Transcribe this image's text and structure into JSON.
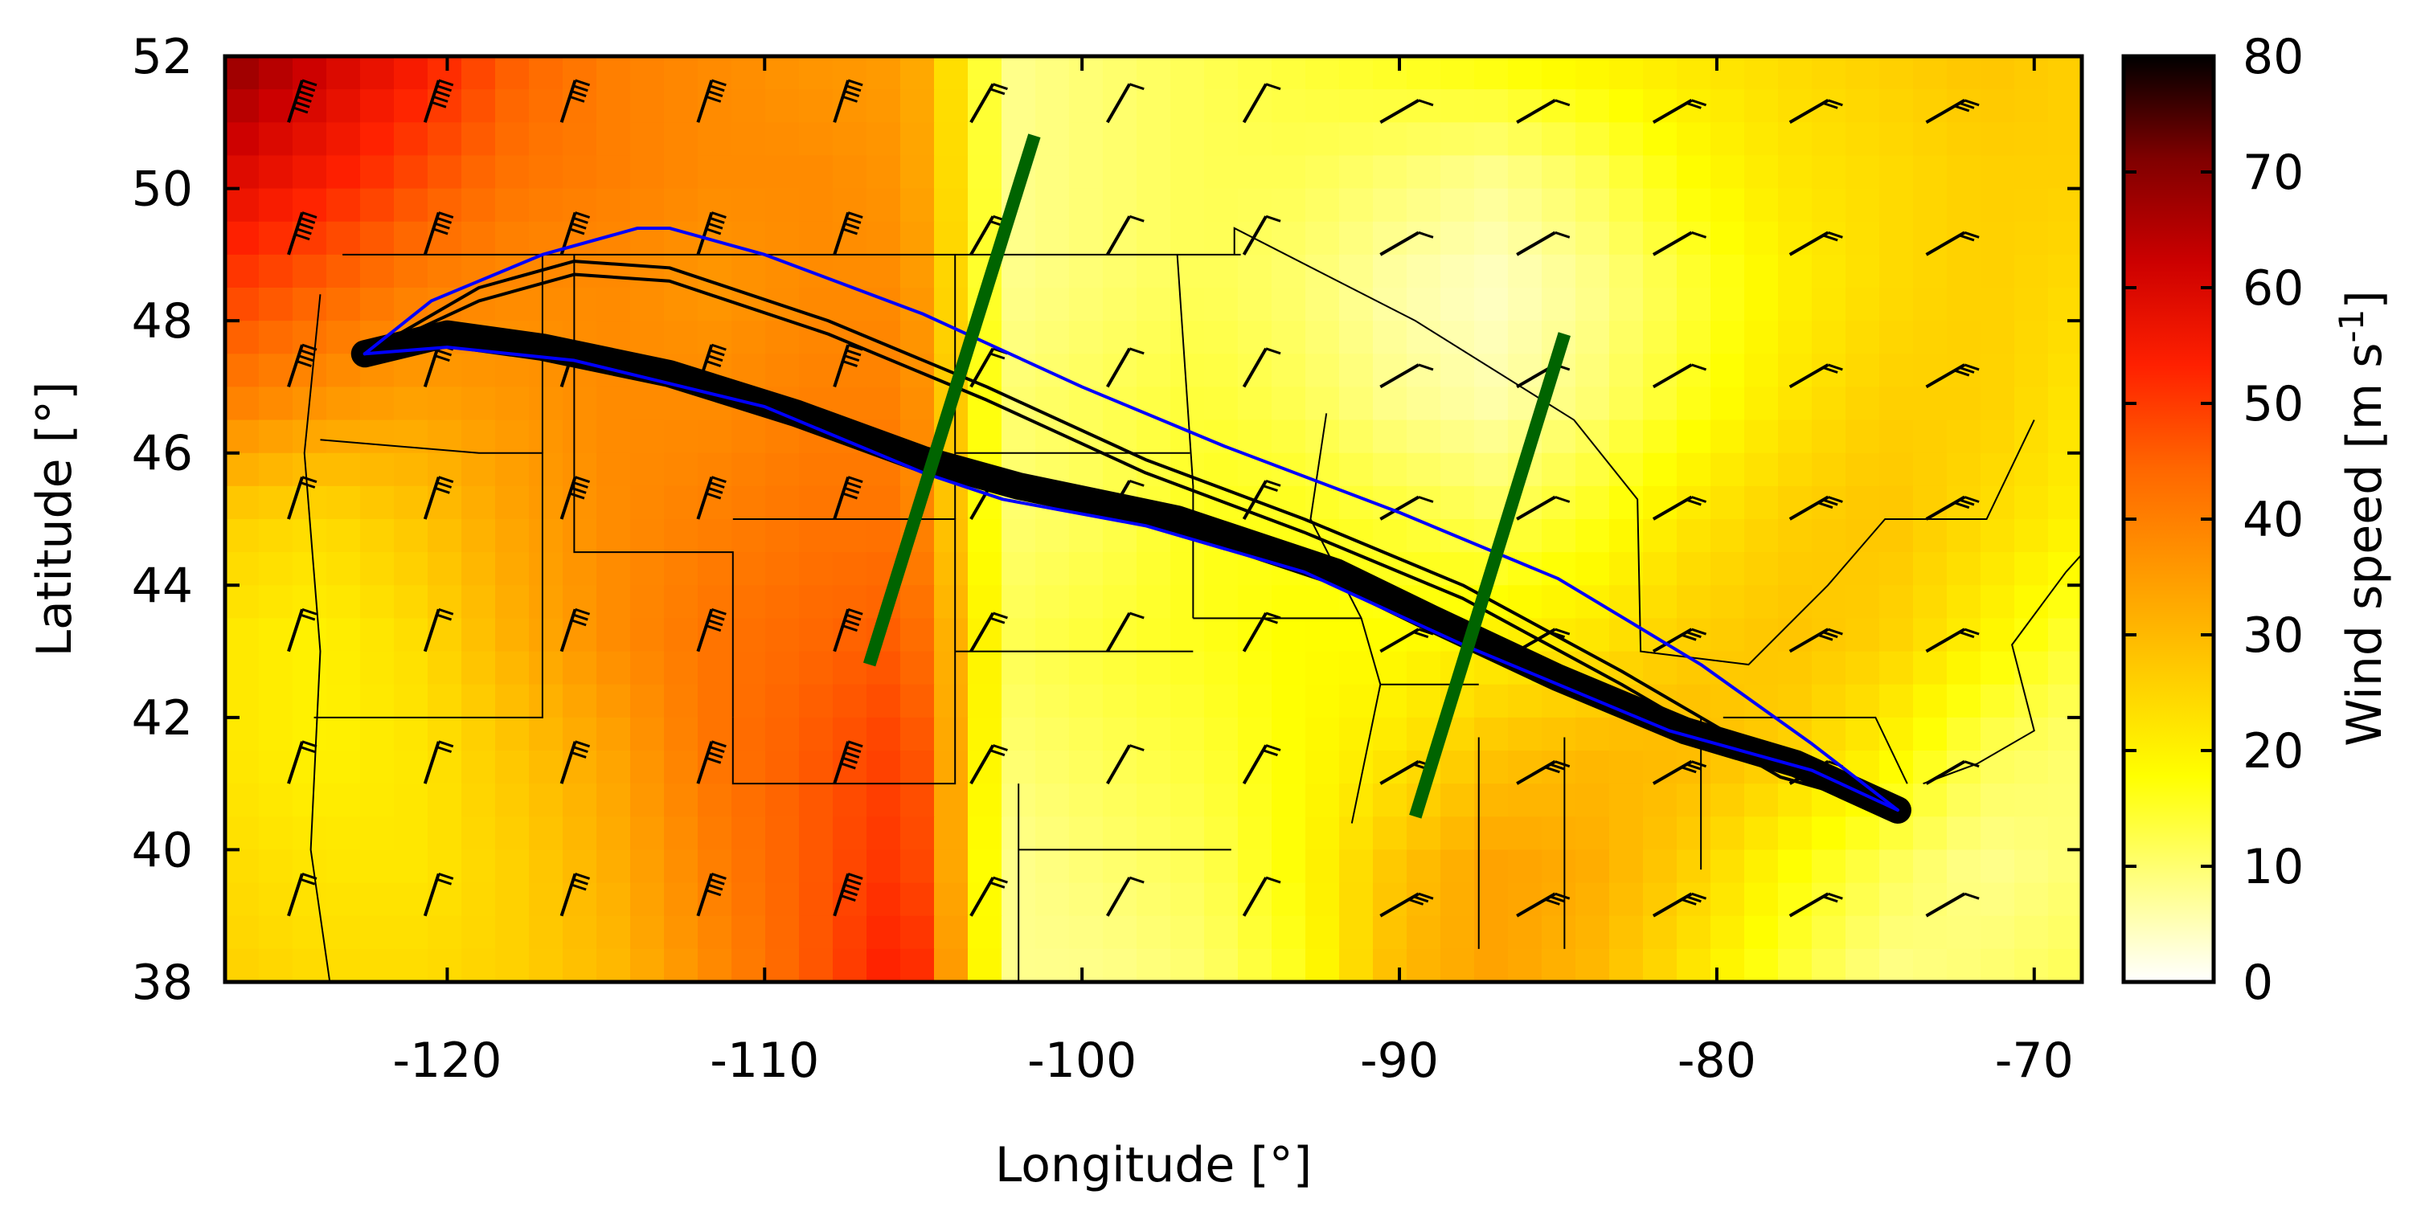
{
  "chart_data": {
    "type": "heatmap",
    "title": "",
    "xlabel": "Longitude [°]",
    "ylabel": "Latitude [°]",
    "xlim": [
      -127,
      -68.5
    ],
    "ylim": [
      38,
      52
    ],
    "x_ticks": [
      -120,
      -110,
      -100,
      -90,
      -80,
      -70
    ],
    "y_ticks": [
      38,
      40,
      42,
      44,
      46,
      48,
      50,
      52
    ],
    "x_tick_labels": [
      "-120",
      "-110",
      "-100",
      "-90",
      "-80",
      "-70"
    ],
    "y_tick_labels": [
      "38",
      "40",
      "42",
      "44",
      "46",
      "48",
      "50",
      "52"
    ],
    "grid": false,
    "colorbar": {
      "label": "Wind speed [m s",
      "label_superscript": "-1",
      "label_suffix": "]",
      "range": [
        0,
        80
      ],
      "ticks": [
        0,
        10,
        20,
        30,
        40,
        50,
        60,
        70,
        80
      ],
      "tick_labels": [
        "0",
        "10",
        "20",
        "30",
        "40",
        "50",
        "60",
        "70",
        "80"
      ],
      "colormap": [
        "#ffffff",
        "#ffff80",
        "#ffff00",
        "#ffcc00",
        "#ff9900",
        "#ff6600",
        "#ff2000",
        "#cc0000",
        "#800000",
        "#000000"
      ]
    },
    "wind_speed_field": {
      "description_grid": "approximate coarse grid, rows from north (52) to south (38), columns from west (-127) to east (-68.5)",
      "rows": [
        [
          70,
          62,
          55,
          45,
          40,
          38,
          36,
          35,
          8,
          10,
          12,
          14,
          16,
          18,
          20,
          22,
          24,
          26,
          28,
          26
        ],
        [
          60,
          55,
          48,
          42,
          40,
          38,
          38,
          36,
          8,
          10,
          12,
          12,
          10,
          8,
          12,
          18,
          22,
          24,
          26,
          26
        ],
        [
          50,
          45,
          40,
          38,
          38,
          36,
          38,
          38,
          8,
          10,
          12,
          10,
          6,
          4,
          8,
          14,
          20,
          24,
          26,
          24
        ],
        [
          40,
          36,
          34,
          36,
          38,
          38,
          40,
          40,
          10,
          12,
          14,
          12,
          8,
          6,
          10,
          16,
          22,
          26,
          26,
          22
        ],
        [
          26,
          24,
          28,
          34,
          38,
          40,
          42,
          42,
          10,
          12,
          16,
          16,
          14,
          12,
          16,
          22,
          26,
          28,
          24,
          20
        ],
        [
          22,
          20,
          24,
          32,
          38,
          42,
          44,
          46,
          12,
          14,
          16,
          18,
          18,
          20,
          22,
          26,
          28,
          26,
          20,
          14
        ],
        [
          22,
          20,
          22,
          28,
          34,
          42,
          46,
          50,
          10,
          12,
          14,
          18,
          22,
          28,
          30,
          30,
          26,
          20,
          12,
          10
        ],
        [
          24,
          22,
          22,
          26,
          32,
          40,
          46,
          52,
          8,
          10,
          12,
          18,
          28,
          34,
          32,
          26,
          18,
          12,
          8,
          10
        ],
        [
          26,
          24,
          24,
          26,
          30,
          38,
          46,
          56,
          8,
          8,
          10,
          16,
          30,
          34,
          30,
          22,
          14,
          8,
          10,
          12
        ]
      ]
    },
    "series": [
      {
        "type": "trajectory_bundle",
        "color": "#000000",
        "path": [
          [
            -122.6,
            47.5
          ],
          [
            -120,
            47.8
          ],
          [
            -117,
            47.6
          ],
          [
            -113,
            47.2
          ],
          [
            -109,
            46.6
          ],
          [
            -105,
            45.9
          ],
          [
            -102,
            45.5
          ],
          [
            -97,
            45.0
          ],
          [
            -92,
            44.2
          ],
          [
            -89,
            43.5
          ],
          [
            -85,
            42.6
          ],
          [
            -81,
            41.8
          ],
          [
            -77.5,
            41.3
          ],
          [
            -74.3,
            40.6
          ]
        ]
      },
      {
        "type": "trajectory",
        "color": "#000000",
        "path": [
          [
            -122.6,
            47.5
          ],
          [
            -119,
            48.5
          ],
          [
            -116,
            48.9
          ],
          [
            -113,
            48.8
          ],
          [
            -108,
            48.0
          ],
          [
            -103,
            47.0
          ],
          [
            -98,
            45.9
          ],
          [
            -93,
            45.0
          ],
          [
            -88,
            44.0
          ],
          [
            -83,
            42.7
          ],
          [
            -78,
            41.3
          ],
          [
            -74.3,
            40.6
          ]
        ]
      },
      {
        "type": "trajectory",
        "color": "#000000",
        "path": [
          [
            -122.6,
            47.5
          ],
          [
            -119,
            48.3
          ],
          [
            -116,
            48.7
          ],
          [
            -113,
            48.6
          ],
          [
            -108,
            47.8
          ],
          [
            -103,
            46.8
          ],
          [
            -98,
            45.7
          ],
          [
            -93,
            44.8
          ],
          [
            -88,
            43.8
          ],
          [
            -83,
            42.5
          ],
          [
            -78,
            41.1
          ],
          [
            -74.3,
            40.6
          ]
        ]
      },
      {
        "type": "envelope_upper",
        "color": "#0000ff",
        "path": [
          [
            -122.6,
            47.5
          ],
          [
            -120.5,
            48.3
          ],
          [
            -117,
            49.0
          ],
          [
            -114,
            49.4
          ],
          [
            -113,
            49.4
          ],
          [
            -110,
            49.0
          ],
          [
            -105,
            48.1
          ],
          [
            -100,
            47.0
          ],
          [
            -95.5,
            46.1
          ],
          [
            -90,
            45.1
          ],
          [
            -85,
            44.1
          ],
          [
            -80.5,
            42.8
          ],
          [
            -77,
            41.6
          ],
          [
            -74.3,
            40.6
          ]
        ]
      },
      {
        "type": "envelope_lower",
        "color": "#0000ff",
        "path": [
          [
            -122.6,
            47.5
          ],
          [
            -120,
            47.6
          ],
          [
            -116,
            47.4
          ],
          [
            -110,
            46.7
          ],
          [
            -105,
            45.7
          ],
          [
            -102.5,
            45.3
          ],
          [
            -98,
            44.9
          ],
          [
            -93,
            44.2
          ],
          [
            -88,
            43.1
          ],
          [
            -84,
            42.3
          ],
          [
            -81.5,
            41.8
          ],
          [
            -77,
            41.2
          ],
          [
            -74.3,
            40.6
          ]
        ]
      },
      {
        "type": "cross_section_line",
        "color": "#006400",
        "path": [
          [
            -106.7,
            42.8
          ],
          [
            -101.5,
            50.8
          ]
        ]
      },
      {
        "type": "cross_section_line",
        "color": "#006400",
        "path": [
          [
            -89.5,
            40.5
          ],
          [
            -84.8,
            47.8
          ]
        ]
      }
    ],
    "wind_barbs": {
      "color": "#000000",
      "description": "wind barbs on a regular lat/lon grid; west-northwesterly flow in the west, light winds east",
      "spacing_deg": [
        4.3,
        2.0
      ]
    },
    "map_overlay": "coastlines and US state / Canadian province boundaries"
  }
}
